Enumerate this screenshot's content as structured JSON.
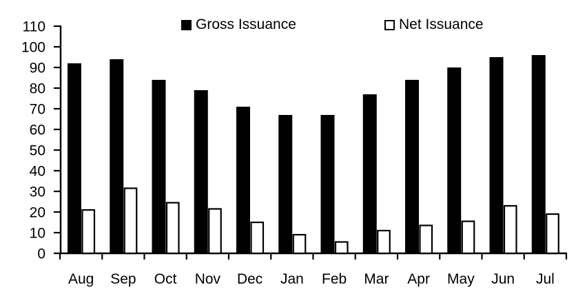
{
  "chart_data": {
    "type": "bar",
    "title": "",
    "xlabel": "",
    "ylabel": "",
    "categories": [
      "Aug",
      "Sep",
      "Oct",
      "Nov",
      "Dec",
      "Jan",
      "Feb",
      "Mar",
      "Apr",
      "May",
      "Jun",
      "Jul"
    ],
    "series": [
      {
        "name": "Gross Issuance",
        "swatch": "black-filled-square",
        "fill": "#000000",
        "stroke": "#000000",
        "values": [
          92,
          94,
          84,
          79,
          71,
          67,
          67,
          77,
          84,
          90,
          95,
          96
        ]
      },
      {
        "name": "Net Issuance",
        "swatch": "white-hollow-square",
        "fill": "#ffffff",
        "stroke": "#000000",
        "values": [
          21,
          31.5,
          24.5,
          21.5,
          15,
          9,
          5.5,
          11,
          13.5,
          15.5,
          23,
          19
        ]
      }
    ],
    "ylim": [
      0,
      110
    ],
    "yticks": [
      0,
      10,
      20,
      30,
      40,
      50,
      60,
      70,
      80,
      90,
      100,
      110
    ],
    "grid": false,
    "legend_position": "top",
    "axis_color": "#000000",
    "background_color": "#ffffff"
  }
}
